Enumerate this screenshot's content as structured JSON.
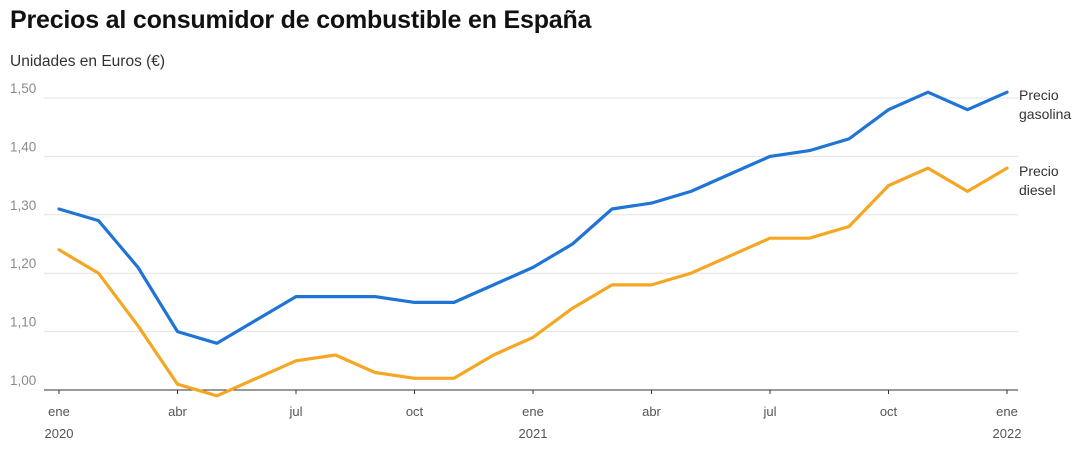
{
  "chart_data": {
    "type": "line",
    "title": "Precios al consumidor de combustible en España",
    "subtitle": "Unidades en Euros (€)",
    "x": [
      "2020-01",
      "2020-02",
      "2020-03",
      "2020-04",
      "2020-05",
      "2020-06",
      "2020-07",
      "2020-08",
      "2020-09",
      "2020-10",
      "2020-11",
      "2020-12",
      "2021-01",
      "2021-02",
      "2021-03",
      "2021-04",
      "2021-05",
      "2021-06",
      "2021-07",
      "2021-08",
      "2021-09",
      "2021-10",
      "2021-11",
      "2021-12",
      "2022-01"
    ],
    "x_tick_labels": [
      {
        "x": "2020-01",
        "line1": "ene",
        "line2": "2020"
      },
      {
        "x": "2020-04",
        "line1": "abr",
        "line2": ""
      },
      {
        "x": "2020-07",
        "line1": "jul",
        "line2": ""
      },
      {
        "x": "2020-10",
        "line1": "oct",
        "line2": ""
      },
      {
        "x": "2021-01",
        "line1": "ene",
        "line2": "2021"
      },
      {
        "x": "2021-04",
        "line1": "abr",
        "line2": ""
      },
      {
        "x": "2021-07",
        "line1": "jul",
        "line2": ""
      },
      {
        "x": "2021-10",
        "line1": "oct",
        "line2": ""
      },
      {
        "x": "2022-01",
        "line1": "ene",
        "line2": "2022"
      }
    ],
    "y_ticks": [
      "1,00",
      "1,10",
      "1,20",
      "1,30",
      "1,40",
      "1,50"
    ],
    "y_tick_values": [
      1.0,
      1.1,
      1.2,
      1.3,
      1.4,
      1.5
    ],
    "ylim": [
      1.0,
      1.5
    ],
    "grid": true,
    "series": [
      {
        "name_lines": [
          "Precio",
          "gasolina"
        ],
        "color": "#1f74d6",
        "values": [
          1.31,
          1.29,
          1.21,
          1.1,
          1.08,
          1.12,
          1.16,
          1.16,
          1.16,
          1.15,
          1.15,
          1.18,
          1.21,
          1.25,
          1.31,
          1.32,
          1.34,
          1.37,
          1.4,
          1.41,
          1.43,
          1.48,
          1.51,
          1.48,
          1.51
        ]
      },
      {
        "name_lines": [
          "Precio",
          "diesel"
        ],
        "color": "#f5a623",
        "values": [
          1.24,
          1.2,
          1.11,
          1.01,
          0.99,
          1.02,
          1.05,
          1.06,
          1.03,
          1.02,
          1.02,
          1.06,
          1.09,
          1.14,
          1.18,
          1.18,
          1.2,
          1.23,
          1.26,
          1.26,
          1.28,
          1.35,
          1.38,
          1.34,
          1.38
        ]
      }
    ]
  }
}
